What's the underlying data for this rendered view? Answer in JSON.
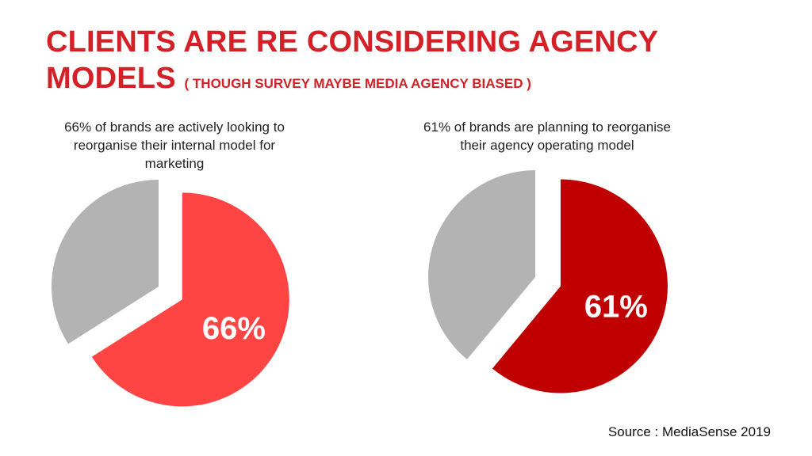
{
  "title": {
    "main": "CLIENTS ARE RE CONSIDERING AGENCY MODELS",
    "sub": "( THOUGH SURVEY MAYBE MEDIA AGENCY BIASED )"
  },
  "source": "Source : MediaSense 2019",
  "colors": {
    "title": "#d42027",
    "remainder": "#b3b3b3",
    "left_highlight": "#ff4444",
    "right_highlight": "#c00000"
  },
  "chart_data": [
    {
      "type": "pie",
      "title": "66% of brands are actively looking to reorganise their internal model for marketing",
      "label": "66%",
      "slices": [
        {
          "value": 66,
          "color": "#ff4444",
          "exploded": true
        },
        {
          "value": 34,
          "color": "#b3b3b3"
        }
      ]
    },
    {
      "type": "pie",
      "title": "61% of brands are planning to reorganise their agency operating model",
      "label": "61%",
      "slices": [
        {
          "value": 61,
          "color": "#c00000",
          "exploded": true
        },
        {
          "value": 39,
          "color": "#b3b3b3"
        }
      ]
    }
  ]
}
